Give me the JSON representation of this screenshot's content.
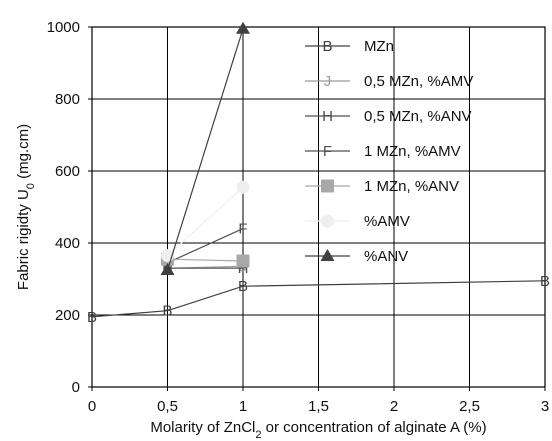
{
  "chart_data": {
    "type": "line",
    "xlabel": "Molarity of ZnCl2 or concentration of alginate A (%)",
    "ylabel": "Fabric rigidty U0 (mg.cm)",
    "xlim": [
      0,
      3
    ],
    "ylim": [
      0,
      1000
    ],
    "xticks": [
      "0",
      "0,5",
      "1",
      "1,5",
      "2",
      "2,5",
      "3"
    ],
    "xtick_values": [
      0,
      0.5,
      1,
      1.5,
      2,
      2.5,
      3
    ],
    "yticks": [
      "0",
      "200",
      "400",
      "600",
      "800",
      "1000"
    ],
    "ytick_values": [
      0,
      200,
      400,
      600,
      800,
      1000
    ],
    "grid": "horizontal and vertical at major ticks",
    "legend_position": "top-right",
    "series": [
      {
        "name": "MZn",
        "marker": "B",
        "color": "#404040",
        "x": [
          0,
          0.5,
          1,
          3
        ],
        "y": [
          195,
          212,
          280,
          295
        ]
      },
      {
        "name": "0,5 MZn, %AMV",
        "marker": "J",
        "color": "#9a9a9a",
        "x": [
          0.5,
          1
        ],
        "y": [
          330,
          335
        ]
      },
      {
        "name": "0,5 MZn, %ANV",
        "marker": "H",
        "color": "#505050",
        "x": [
          0.5,
          1
        ],
        "y": [
          330,
          330
        ]
      },
      {
        "name": "1 MZn, %AMV",
        "marker": "F",
        "color": "#505050",
        "x": [
          0.5,
          1
        ],
        "y": [
          345,
          440
        ]
      },
      {
        "name": "1 MZn, %ANV",
        "marker": "square",
        "color": "#a8a8a8",
        "x": [
          0.5,
          1
        ],
        "y": [
          355,
          350
        ]
      },
      {
        "name": "%AMV",
        "marker": "circle",
        "color": "#eeeeee",
        "x": [
          0.5,
          1
        ],
        "y": [
          365,
          555
        ]
      },
      {
        "name": "%ANV",
        "marker": "triangle",
        "color": "#404040",
        "x": [
          0.5,
          1
        ],
        "y": [
          325,
          995
        ]
      }
    ]
  }
}
